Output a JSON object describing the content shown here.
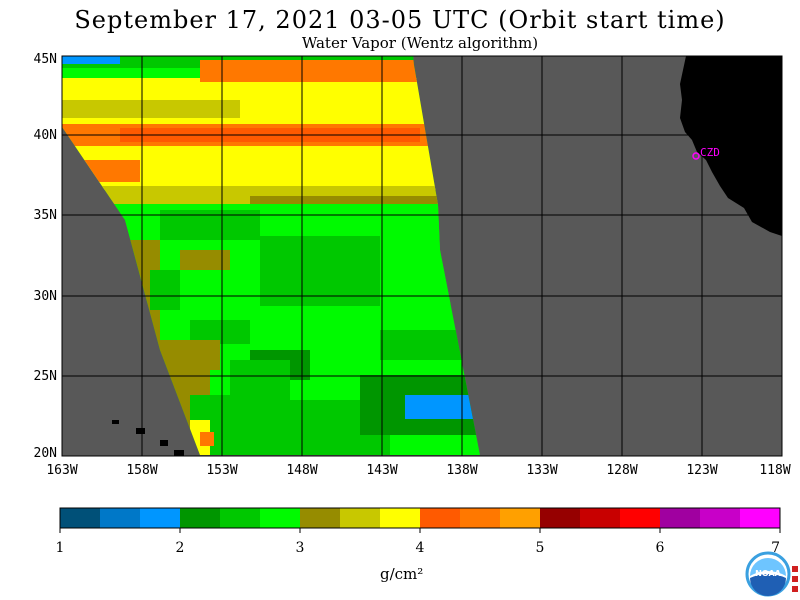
{
  "header": {
    "title": "September 17, 2021  03-05 UTC  (Orbit start time)",
    "subtitle": "Water Vapor (Wentz algorithm)"
  },
  "map": {
    "lat_labels": [
      "45N",
      "40N",
      "35N",
      "30N",
      "25N",
      "20N"
    ],
    "lon_labels": [
      "163W",
      "158W",
      "153W",
      "148W",
      "143W",
      "138W",
      "133W",
      "128W",
      "123W",
      "118W"
    ],
    "station_label": "CZD",
    "colors": {
      "ocean_nodata": "#585858",
      "land": "#000000",
      "station": "#ff00ff"
    }
  },
  "colorbar": {
    "units": "g/cm²",
    "tick_labels": [
      "1",
      "2",
      "3",
      "4",
      "5",
      "6",
      "7"
    ],
    "colors": [
      "#005078",
      "#0078c8",
      "#0096ff",
      "#009600",
      "#00c800",
      "#00fa00",
      "#968c00",
      "#c8c800",
      "#ffff00",
      "#ff5a00",
      "#ff7800",
      "#ffa000",
      "#960000",
      "#c80000",
      "#ff0000",
      "#a000a0",
      "#c800c8",
      "#ff00ff"
    ]
  },
  "logo": {
    "text": "NOAA"
  }
}
